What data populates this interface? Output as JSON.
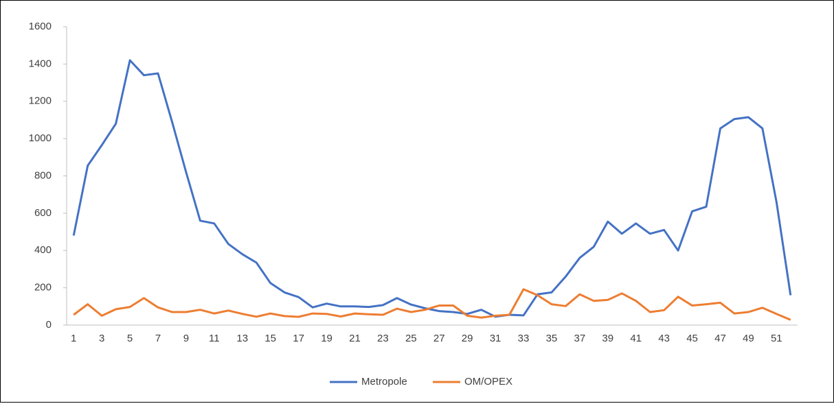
{
  "chart_data": {
    "type": "line",
    "categories": [
      1,
      null,
      3,
      null,
      5,
      null,
      7,
      null,
      9,
      null,
      11,
      null,
      13,
      null,
      15,
      null,
      17,
      null,
      19,
      null,
      21,
      null,
      23,
      null,
      25,
      null,
      27,
      null,
      29,
      null,
      31,
      null,
      33,
      null,
      35,
      null,
      37,
      null,
      39,
      null,
      41,
      null,
      43,
      null,
      45,
      null,
      47,
      null,
      49,
      null,
      51,
      null
    ],
    "series": [
      {
        "name": "Metropole",
        "color": "#4472c4",
        "values": [
          480,
          855,
          965,
          1080,
          1420,
          1340,
          1350,
          1090,
          820,
          560,
          545,
          435,
          380,
          335,
          225,
          175,
          150,
          95,
          115,
          100,
          100,
          97,
          107,
          145,
          110,
          90,
          75,
          70,
          60,
          82,
          45,
          55,
          52,
          165,
          175,
          260,
          360,
          420,
          555,
          490,
          545,
          490,
          510,
          400,
          610,
          635,
          1055,
          1105,
          1115,
          1055,
          660,
          160
        ]
      },
      {
        "name": "OM/OPEX",
        "color": "#ed7d31",
        "values": [
          55,
          112,
          50,
          85,
          97,
          145,
          95,
          70,
          70,
          82,
          62,
          78,
          60,
          45,
          62,
          48,
          44,
          62,
          60,
          46,
          62,
          58,
          55,
          88,
          70,
          82,
          105,
          105,
          50,
          40,
          50,
          55,
          192,
          160,
          112,
          102,
          165,
          130,
          135,
          170,
          130,
          70,
          80,
          152,
          105,
          112,
          120,
          62,
          70,
          93,
          60,
          28
        ]
      }
    ],
    "ylim": [
      0,
      1600
    ],
    "yticks": [
      0,
      200,
      400,
      600,
      800,
      1000,
      1200,
      1400,
      1600
    ],
    "legend": "bottom"
  }
}
